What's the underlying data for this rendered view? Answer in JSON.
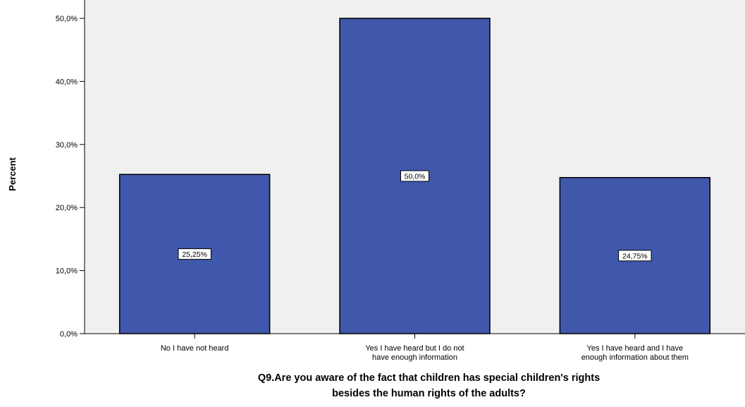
{
  "chart_data": {
    "type": "bar",
    "categories": [
      [
        "No I have not heard"
      ],
      [
        "Yes I have heard but I do not",
        "have enough information"
      ],
      [
        "Yes I have heard and I have",
        "enough information about them"
      ]
    ],
    "values": [
      25.25,
      50.0,
      24.75
    ],
    "data_labels": [
      "25,25%",
      "50,0%",
      "24,75%"
    ],
    "title": "",
    "xlabel": [
      "Q9.Are you aware of the fact that children has special children's rights",
      "besides the human rights of the adults?"
    ],
    "ylabel": "Percent",
    "ylim": [
      0,
      50
    ],
    "yticks": [
      0,
      10,
      20,
      30,
      40,
      50
    ],
    "ytick_labels": [
      "0,0%",
      "10,0%",
      "20,0%",
      "30,0%",
      "40,0%",
      "50,0%"
    ],
    "grid": false,
    "legend": "none",
    "colors": {
      "bar": "#3f58ab",
      "plot_background": "#f0f0f0",
      "bar_stroke": "#000000"
    }
  }
}
